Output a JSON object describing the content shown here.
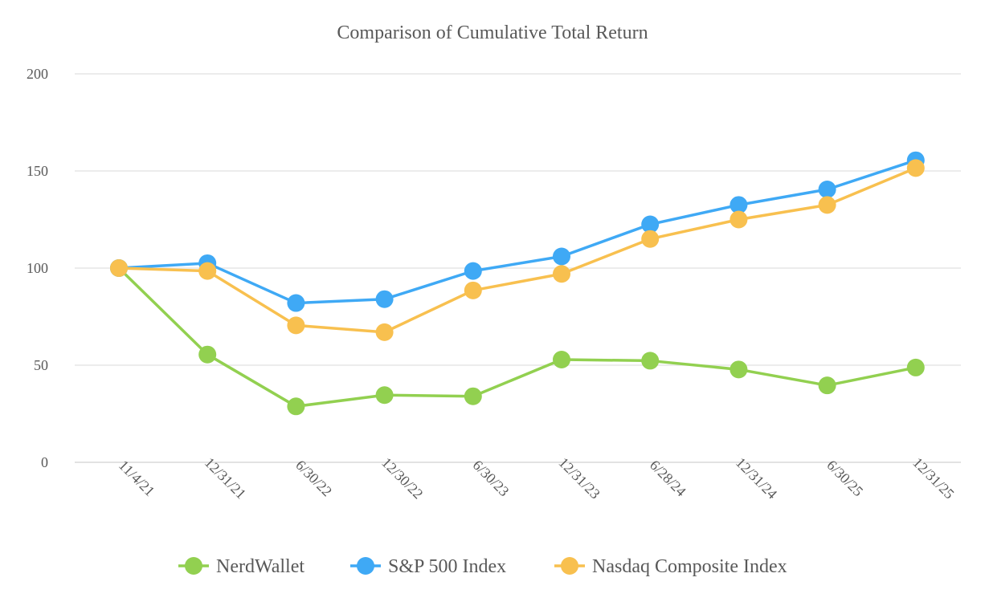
{
  "chart_data": {
    "type": "line",
    "title": "Comparison of Cumulative Total Return",
    "xlabel": "",
    "ylabel": "",
    "categories": [
      "11/4/21",
      "12/31/21",
      "6/30/22",
      "12/30/22",
      "6/30/23",
      "12/31/23",
      "6/28/24",
      "12/31/24",
      "6/30/25",
      "12/31/25"
    ],
    "ylim": [
      0,
      200
    ],
    "yticks": [
      0,
      50,
      100,
      150,
      200
    ],
    "grid": true,
    "legend": "bottom",
    "series": [
      {
        "name": "NerdWallet",
        "color": "#92d050",
        "values": [
          100,
          55.5,
          28.8,
          34.6,
          34.0,
          52.9,
          52.3,
          47.8,
          39.6,
          48.8
        ]
      },
      {
        "name": "S&P 500 Index",
        "color": "#3fa9f5",
        "values": [
          100,
          102.5,
          82.0,
          84.0,
          98.5,
          106.0,
          122.5,
          132.5,
          140.5,
          155.5
        ]
      },
      {
        "name": "Nasdaq Composite Index",
        "color": "#f8c04f",
        "values": [
          100,
          98.5,
          70.5,
          67.0,
          88.5,
          97.0,
          115.0,
          125.0,
          132.5,
          151.5
        ]
      }
    ]
  }
}
